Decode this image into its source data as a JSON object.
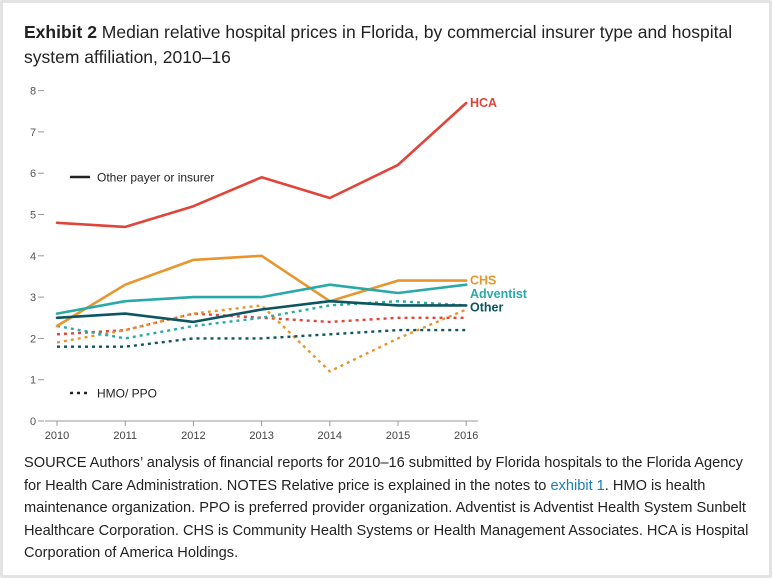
{
  "exhibit": {
    "label": "Exhibit 2",
    "title": "Median relative hospital prices in Florida, by commercial insurer type and hospital system affiliation, 2010–16"
  },
  "notes": {
    "source_text": "SOURCE Authors’ analysis of financial reports for 2010–16 submitted by Florida hospitals to the Florida Agency for Health Care Administration. NOTES Relative price is explained in the notes to ",
    "link_text": "exhibit 1",
    "rest_text": ". HMO is health maintenance organization. PPO is preferred provider organization. Adventist is Adventist Health System Sunbelt Healthcare Corporation. CHS is Community Health Systems or Health Management Associates. HCA is Hospital Corporation of America Holdings."
  },
  "colors": {
    "hca": "#e0453a",
    "chs": "#e8952e",
    "adventist": "#2aa9a9",
    "other": "#0d5560",
    "axis": "#999999",
    "link": "#1a7fb0"
  },
  "chart_data": {
    "type": "line",
    "title": "Median relative hospital prices in Florida, by commercial insurer type and hospital system affiliation, 2010–16",
    "xlabel": "",
    "ylabel": "",
    "x": [
      "2010",
      "2011",
      "2012",
      "2013",
      "2014",
      "2015",
      "2016"
    ],
    "y_ticks": [
      "0",
      "1",
      "2",
      "3",
      "4",
      "5",
      "6",
      "7",
      "8"
    ],
    "ylim": [
      0,
      8
    ],
    "grid": false,
    "legend": [
      {
        "label": "Other payer or insurer",
        "style": "solid"
      },
      {
        "label": "HMO/ PPO",
        "style": "dotted"
      }
    ],
    "series": [
      {
        "name": "HCA",
        "group": "hca",
        "style": "solid",
        "values": [
          4.8,
          4.7,
          5.2,
          5.9,
          5.4,
          6.2,
          7.7
        ]
      },
      {
        "name": "CHS",
        "group": "chs",
        "style": "solid",
        "values": [
          2.3,
          3.3,
          3.9,
          4.0,
          2.9,
          3.4,
          3.4
        ]
      },
      {
        "name": "Adventist",
        "group": "adventist",
        "style": "solid",
        "values": [
          2.6,
          2.9,
          3.0,
          3.0,
          3.3,
          3.1,
          3.3
        ]
      },
      {
        "name": "Other",
        "group": "other",
        "style": "solid",
        "values": [
          2.5,
          2.6,
          2.4,
          2.7,
          2.9,
          2.8,
          2.8
        ]
      },
      {
        "group": "hca",
        "style": "dotted",
        "values": [
          2.1,
          2.2,
          2.6,
          2.5,
          2.4,
          2.5,
          2.5
        ]
      },
      {
        "group": "chs",
        "style": "dotted",
        "values": [
          1.9,
          2.2,
          2.6,
          2.8,
          1.2,
          2.0,
          2.7
        ]
      },
      {
        "group": "adventist",
        "style": "dotted",
        "values": [
          2.3,
          2.0,
          2.3,
          2.5,
          2.8,
          2.9,
          2.8
        ]
      },
      {
        "group": "other",
        "style": "dotted",
        "values": [
          1.8,
          1.8,
          2.0,
          2.0,
          2.1,
          2.2,
          2.2
        ]
      }
    ]
  }
}
